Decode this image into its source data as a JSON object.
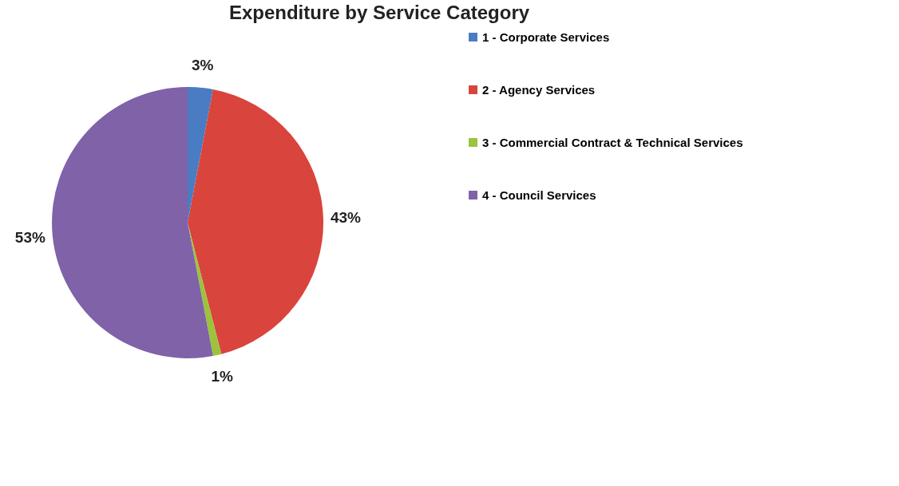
{
  "chart_data": {
    "type": "pie",
    "title": "Expenditure by Service Category",
    "categories": [
      "1 - Corporate Services",
      "2 - Agency Services",
      "3 - Commercial Contract & Technical Services",
      "4 - Council Services"
    ],
    "values": [
      3,
      43,
      1,
      53
    ],
    "colors": [
      "#4a7cc4",
      "#d9443c",
      "#9bc33c",
      "#7f62a8"
    ],
    "value_labels": [
      "3%",
      "43%",
      "1%",
      "53%"
    ],
    "legend": "right"
  }
}
